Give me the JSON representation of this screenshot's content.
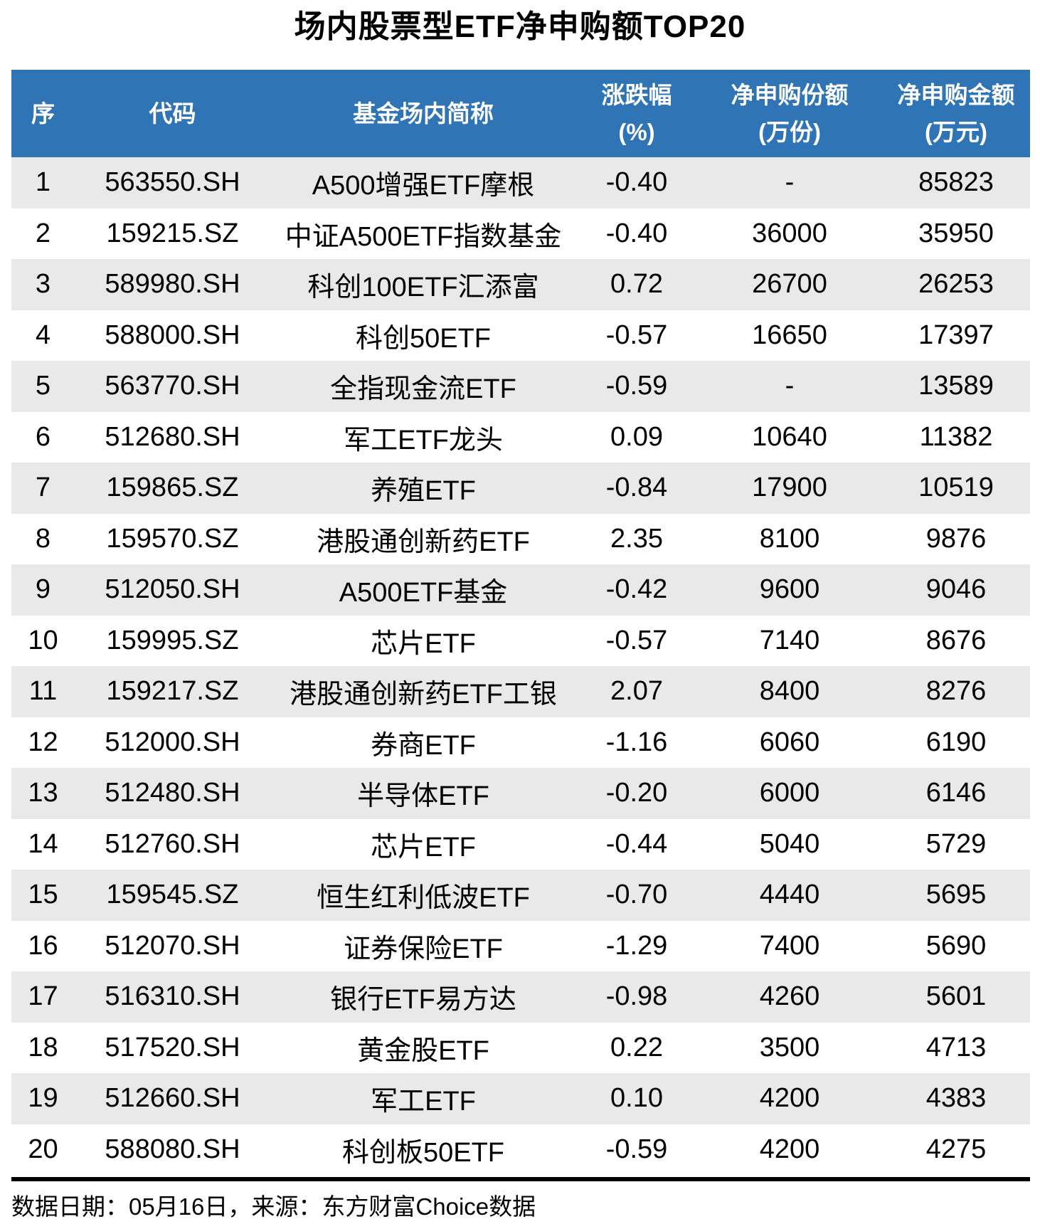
{
  "chart_data": {
    "type": "table",
    "title": "场内股票型ETF净申购额TOP20",
    "columns": [
      {
        "key": "rank",
        "label": "序",
        "sub": ""
      },
      {
        "key": "code",
        "label": "代码",
        "sub": ""
      },
      {
        "key": "name",
        "label": "基金场内简称",
        "sub": ""
      },
      {
        "key": "change",
        "label": "涨跌幅",
        "sub": "(%)"
      },
      {
        "key": "shares",
        "label": "净申购份额",
        "sub": "(万份)"
      },
      {
        "key": "amount",
        "label": "净申购金额",
        "sub": "(万元)"
      }
    ],
    "rows": [
      [
        "1",
        "563550.SH",
        "A500增强ETF摩根",
        "-0.40",
        "-",
        "85823"
      ],
      [
        "2",
        "159215.SZ",
        "中证A500ETF指数基金",
        "-0.40",
        "36000",
        "35950"
      ],
      [
        "3",
        "589980.SH",
        "科创100ETF汇添富",
        "0.72",
        "26700",
        "26253"
      ],
      [
        "4",
        "588000.SH",
        "科创50ETF",
        "-0.57",
        "16650",
        "17397"
      ],
      [
        "5",
        "563770.SH",
        "全指现金流ETF",
        "-0.59",
        "-",
        "13589"
      ],
      [
        "6",
        "512680.SH",
        "军工ETF龙头",
        "0.09",
        "10640",
        "11382"
      ],
      [
        "7",
        "159865.SZ",
        "养殖ETF",
        "-0.84",
        "17900",
        "10519"
      ],
      [
        "8",
        "159570.SZ",
        "港股通创新药ETF",
        "2.35",
        "8100",
        "9876"
      ],
      [
        "9",
        "512050.SH",
        "A500ETF基金",
        "-0.42",
        "9600",
        "9046"
      ],
      [
        "10",
        "159995.SZ",
        "芯片ETF",
        "-0.57",
        "7140",
        "8676"
      ],
      [
        "11",
        "159217.SZ",
        "港股通创新药ETF工银",
        "2.07",
        "8400",
        "8276"
      ],
      [
        "12",
        "512000.SH",
        "券商ETF",
        "-1.16",
        "6060",
        "6190"
      ],
      [
        "13",
        "512480.SH",
        "半导体ETF",
        "-0.20",
        "6000",
        "6146"
      ],
      [
        "14",
        "512760.SH",
        "芯片ETF",
        "-0.44",
        "5040",
        "5729"
      ],
      [
        "15",
        "159545.SZ",
        "恒生红利低波ETF",
        "-0.70",
        "4440",
        "5695"
      ],
      [
        "16",
        "512070.SH",
        "证券保险ETF",
        "-1.29",
        "7400",
        "5690"
      ],
      [
        "17",
        "516310.SH",
        "银行ETF易方达",
        "-0.98",
        "4260",
        "5601"
      ],
      [
        "18",
        "517520.SH",
        "黄金股ETF",
        "0.22",
        "3500",
        "4713"
      ],
      [
        "19",
        "512660.SH",
        "军工ETF",
        "0.10",
        "4200",
        "4383"
      ],
      [
        "20",
        "588080.SH",
        "科创板50ETF",
        "-0.59",
        "4200",
        "4275"
      ]
    ],
    "source_note": "数据日期：05月16日，来源：东方财富Choice数据",
    "layout": {
      "striped_rows": true,
      "stripe_pattern": "odd-rows-gray",
      "header_rows": 1,
      "grid": false,
      "legend": "none"
    }
  },
  "colors": {
    "header_bg": "#2F74B5",
    "header_text": "#FFFFFF",
    "stripe_gray": "#E9E9E9",
    "body_text": "#000000",
    "divider": "#000000"
  }
}
